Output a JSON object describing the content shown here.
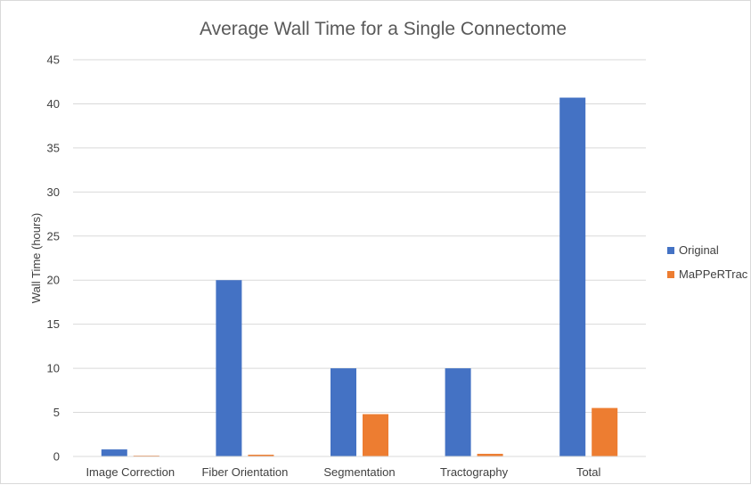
{
  "chart_data": {
    "type": "bar",
    "title": "Average Wall Time for a Single Connectome",
    "xlabel": "",
    "ylabel": "Wall Time (hours)",
    "ylim": [
      0,
      45
    ],
    "yticks": [
      0,
      5,
      10,
      15,
      20,
      25,
      30,
      35,
      40,
      45
    ],
    "grid": true,
    "legend_position": "right",
    "categories": [
      "Image Correction",
      "Fiber Orientation",
      "Segmentation",
      "Tractography",
      "Total"
    ],
    "series": [
      {
        "name": "Original",
        "color": "#4472c4",
        "values": [
          0.8,
          20.0,
          10.0,
          10.0,
          40.7
        ]
      },
      {
        "name": "MaPPeRTrac",
        "color": "#ed7d31",
        "values": [
          0.1,
          0.2,
          4.8,
          0.3,
          5.5
        ]
      }
    ]
  }
}
